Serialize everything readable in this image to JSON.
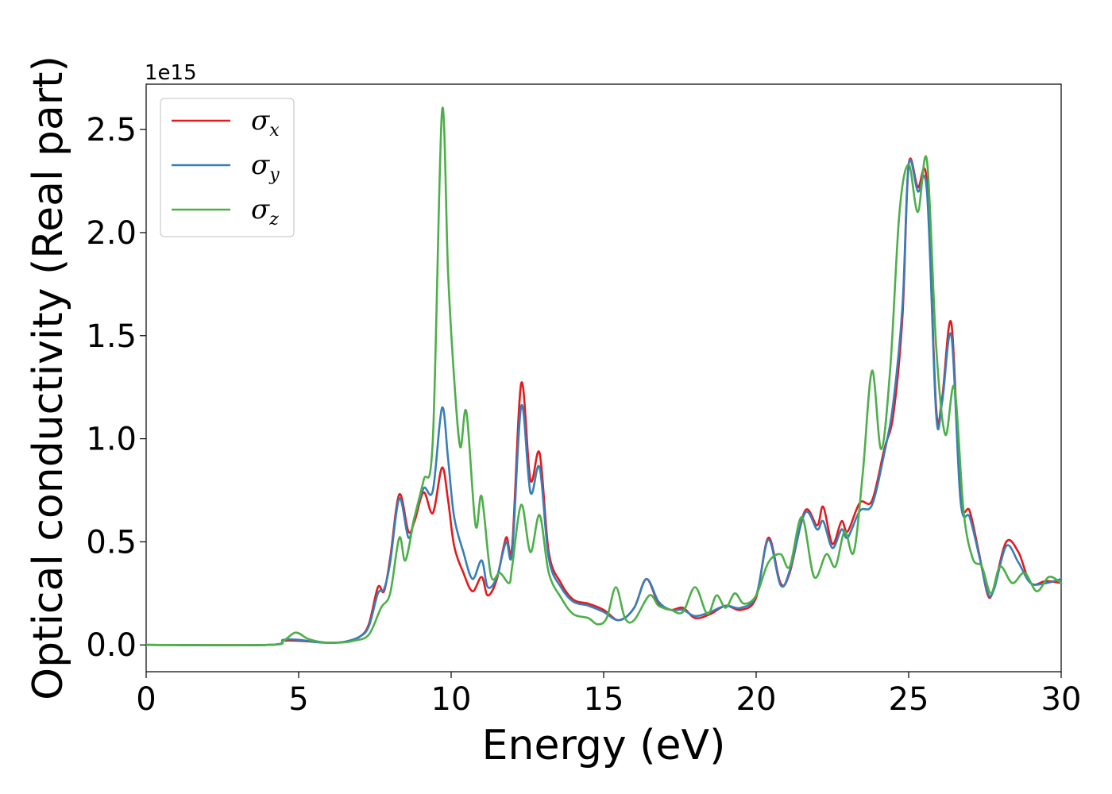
{
  "chart_data": {
    "type": "line",
    "xlabel": "Energy (eV)",
    "ylabel": "Optical conductivity (Real part)",
    "offset_text": "1e15",
    "xlim": [
      0,
      30
    ],
    "ylim": [
      -0.13,
      2.72
    ],
    "xticks": [
      0,
      5,
      10,
      15,
      20,
      25,
      30
    ],
    "xtick_labels": [
      "0",
      "5",
      "10",
      "15",
      "20",
      "25",
      "30"
    ],
    "yticks": [
      0.0,
      0.5,
      1.0,
      1.5,
      2.0,
      2.5
    ],
    "ytick_labels": [
      "0.0",
      "0.5",
      "1.0",
      "1.5",
      "2.0",
      "2.5"
    ],
    "grid": false,
    "legend_position": "upper-left",
    "series": [
      {
        "name": "σx",
        "symbol": "σ",
        "subscript": "x",
        "color": "#e41a1c",
        "x": [
          0,
          4.0,
          4.5,
          5.0,
          5.5,
          6.0,
          6.5,
          7.0,
          7.3,
          7.6,
          7.8,
          8.0,
          8.3,
          8.6,
          8.8,
          9.1,
          9.4,
          9.7,
          9.9,
          10.1,
          10.4,
          10.7,
          11.0,
          11.2,
          11.5,
          11.8,
          12.0,
          12.3,
          12.6,
          12.9,
          13.2,
          13.6,
          14.0,
          14.5,
          15.0,
          15.5,
          16.0,
          16.4,
          16.8,
          17.2,
          17.6,
          18.0,
          18.5,
          19.0,
          19.5,
          20.0,
          20.4,
          20.8,
          21.1,
          21.6,
          22.0,
          22.2,
          22.5,
          22.8,
          23.0,
          23.4,
          23.8,
          24.2,
          24.5,
          24.8,
          25.0,
          25.3,
          25.6,
          25.9,
          26.1,
          26.4,
          26.7,
          27.0,
          27.3,
          27.6,
          27.8,
          28.2,
          28.6,
          29.0,
          29.5,
          30.0
        ],
        "y": [
          0.0,
          0.0,
          0.02,
          0.02,
          0.015,
          0.01,
          0.015,
          0.04,
          0.1,
          0.28,
          0.26,
          0.42,
          0.73,
          0.55,
          0.6,
          0.74,
          0.64,
          0.86,
          0.7,
          0.48,
          0.35,
          0.26,
          0.33,
          0.24,
          0.32,
          0.52,
          0.48,
          1.27,
          0.8,
          0.93,
          0.45,
          0.3,
          0.22,
          0.2,
          0.17,
          0.12,
          0.18,
          0.32,
          0.2,
          0.17,
          0.18,
          0.13,
          0.15,
          0.19,
          0.17,
          0.23,
          0.52,
          0.3,
          0.35,
          0.65,
          0.58,
          0.67,
          0.49,
          0.6,
          0.55,
          0.69,
          0.7,
          0.95,
          1.12,
          1.6,
          2.33,
          2.22,
          2.24,
          1.15,
          1.2,
          1.56,
          0.72,
          0.65,
          0.45,
          0.24,
          0.28,
          0.5,
          0.45,
          0.3,
          0.31,
          0.3
        ]
      },
      {
        "name": "σy",
        "symbol": "σ",
        "subscript": "y",
        "color": "#377eb8",
        "x": [
          0,
          4.0,
          4.5,
          5.0,
          5.5,
          6.0,
          6.5,
          7.0,
          7.3,
          7.6,
          7.8,
          8.0,
          8.3,
          8.6,
          8.8,
          9.1,
          9.4,
          9.7,
          9.9,
          10.1,
          10.4,
          10.7,
          11.0,
          11.2,
          11.5,
          11.8,
          12.0,
          12.3,
          12.6,
          12.9,
          13.2,
          13.6,
          14.0,
          14.5,
          15.0,
          15.5,
          16.0,
          16.4,
          16.8,
          17.2,
          17.6,
          18.0,
          18.5,
          19.0,
          19.5,
          20.0,
          20.4,
          20.8,
          21.1,
          21.6,
          22.0,
          22.2,
          22.5,
          22.8,
          23.0,
          23.4,
          23.8,
          24.2,
          24.5,
          24.8,
          25.0,
          25.3,
          25.6,
          25.9,
          26.1,
          26.4,
          26.7,
          27.0,
          27.3,
          27.6,
          27.8,
          28.2,
          28.6,
          29.0,
          29.5,
          30.0
        ],
        "y": [
          0.0,
          0.0,
          0.025,
          0.025,
          0.015,
          0.01,
          0.015,
          0.04,
          0.09,
          0.25,
          0.27,
          0.4,
          0.71,
          0.52,
          0.62,
          0.76,
          0.75,
          1.15,
          0.9,
          0.62,
          0.45,
          0.32,
          0.41,
          0.28,
          0.33,
          0.5,
          0.45,
          1.16,
          0.74,
          0.86,
          0.42,
          0.28,
          0.21,
          0.19,
          0.16,
          0.12,
          0.18,
          0.32,
          0.21,
          0.17,
          0.17,
          0.14,
          0.16,
          0.19,
          0.18,
          0.24,
          0.51,
          0.29,
          0.36,
          0.64,
          0.56,
          0.6,
          0.47,
          0.56,
          0.52,
          0.65,
          0.68,
          0.93,
          1.18,
          1.65,
          2.33,
          2.2,
          2.2,
          1.12,
          1.18,
          1.5,
          0.7,
          0.62,
          0.44,
          0.25,
          0.27,
          0.48,
          0.4,
          0.3,
          0.3,
          0.32
        ]
      },
      {
        "name": "σz",
        "symbol": "σ",
        "subscript": "z",
        "color": "#4daf4a",
        "x": [
          0,
          4.0,
          4.5,
          4.9,
          5.3,
          5.7,
          6.2,
          6.8,
          7.3,
          7.7,
          8.0,
          8.3,
          8.5,
          8.8,
          9.1,
          9.4,
          9.7,
          9.9,
          10.1,
          10.3,
          10.5,
          10.8,
          11.0,
          11.3,
          11.6,
          11.9,
          12.0,
          12.3,
          12.6,
          12.9,
          13.2,
          13.6,
          14.0,
          14.5,
          14.8,
          15.1,
          15.4,
          15.7,
          16.0,
          16.5,
          16.8,
          17.2,
          17.6,
          18.0,
          18.4,
          18.7,
          19.0,
          19.3,
          19.6,
          20.0,
          20.4,
          20.8,
          21.1,
          21.5,
          21.9,
          22.3,
          22.6,
          22.9,
          23.2,
          23.5,
          23.8,
          24.1,
          24.4,
          24.7,
          25.0,
          25.3,
          25.6,
          25.9,
          26.2,
          26.5,
          26.8,
          27.1,
          27.4,
          27.7,
          28.0,
          28.4,
          28.8,
          29.2,
          29.6,
          30.0
        ],
        "y": [
          0.0,
          0.0,
          0.02,
          0.06,
          0.03,
          0.015,
          0.01,
          0.02,
          0.05,
          0.18,
          0.25,
          0.52,
          0.41,
          0.62,
          0.8,
          1.0,
          2.59,
          1.8,
          1.29,
          0.96,
          1.13,
          0.58,
          0.72,
          0.34,
          0.35,
          0.3,
          0.38,
          0.68,
          0.45,
          0.63,
          0.35,
          0.23,
          0.15,
          0.13,
          0.1,
          0.13,
          0.28,
          0.13,
          0.12,
          0.24,
          0.19,
          0.17,
          0.16,
          0.28,
          0.15,
          0.24,
          0.18,
          0.25,
          0.2,
          0.24,
          0.4,
          0.44,
          0.38,
          0.62,
          0.33,
          0.44,
          0.38,
          0.55,
          0.45,
          0.84,
          1.33,
          0.95,
          1.35,
          2.1,
          2.33,
          2.1,
          2.35,
          1.45,
          1.02,
          1.25,
          0.65,
          0.42,
          0.38,
          0.25,
          0.38,
          0.3,
          0.35,
          0.26,
          0.33,
          0.3
        ]
      }
    ]
  }
}
